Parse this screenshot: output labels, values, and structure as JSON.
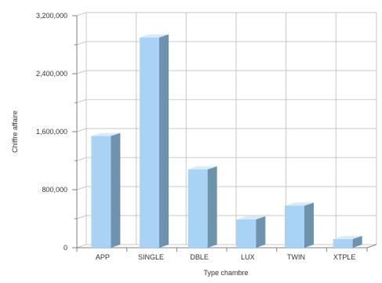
{
  "chart_data": {
    "type": "bar",
    "style": "3d",
    "categories": [
      "APP",
      "SINGLE",
      "DBLE",
      "LUX",
      "TWIN",
      "XTPLE"
    ],
    "values": [
      1540000,
      2900000,
      1080000,
      390000,
      580000,
      120000
    ],
    "xlabel": "Type chambre",
    "ylabel": "Chiffre affaire",
    "ylim": [
      0,
      3200000
    ],
    "yticks": [
      0,
      800000,
      1600000,
      2400000,
      3200000
    ],
    "ytick_labels": [
      "0",
      "800,000",
      "1,600,000",
      "2,400,000",
      "3,200,000"
    ],
    "grid": true,
    "legend": "none",
    "colors": {
      "bar_front": "#a8d3f5",
      "bar_side": "#6f93ad",
      "bar_top": "#d4ecfc",
      "grid": "#c8c8c8",
      "axis": "#808080"
    }
  }
}
